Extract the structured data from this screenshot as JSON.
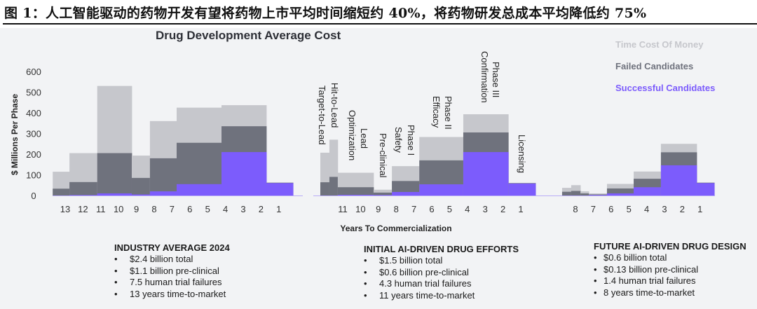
{
  "caption": "图 1：人工智能驱动的药物开发有望将药物上市平均时间缩短约 40%，将药物研发总成本平均降低约 75%",
  "chart_data": {
    "type": "bar",
    "title": "Drug Development Average Cost",
    "xlabel": "Years To Commercialization",
    "ylabel": "$ Millions Per Phase",
    "ylim": [
      0,
      600
    ],
    "yticks": [
      "0",
      "100",
      "200",
      "300",
      "400",
      "500",
      "600"
    ],
    "legend_position": "top-right",
    "legend": [
      {
        "label": "Time Cost Of Money",
        "color": "#c6c7cc"
      },
      {
        "label": "Failed Candidates",
        "color": "#6f727d"
      },
      {
        "label": "Successful Candidates",
        "color": "#7c5cfc"
      }
    ],
    "stack_note": "values are cumulative stack tops: total (incl. time cost), failed, successful",
    "panels": [
      {
        "name": "industry-average",
        "xticks": [
          "13",
          "12",
          "11",
          "10",
          "9",
          "8",
          "7",
          "6",
          "5",
          "4",
          "3",
          "2",
          "1"
        ],
        "segments": [
          {
            "from": 13.7,
            "to": 12.76,
            "total": 115,
            "failed": 33,
            "successful": 0
          },
          {
            "from": 12.76,
            "to": 11.2,
            "total": 205,
            "failed": 65,
            "successful": 2
          },
          {
            "from": 11.2,
            "to": 9.26,
            "total": 530,
            "failed": 205,
            "successful": 10
          },
          {
            "from": 9.26,
            "to": 8.24,
            "total": 193,
            "failed": 85,
            "successful": 5
          },
          {
            "from": 8.24,
            "to": 6.74,
            "total": 360,
            "failed": 180,
            "successful": 20
          },
          {
            "from": 6.74,
            "to": 4.22,
            "total": 425,
            "failed": 255,
            "successful": 55
          },
          {
            "from": 4.22,
            "to": 1.7,
            "total": 437,
            "failed": 335,
            "successful": 210
          },
          {
            "from": 1.7,
            "to": 0.2,
            "total": 62,
            "failed": 62,
            "successful": 60
          }
        ]
      },
      {
        "name": "initial-ai-driven",
        "xticks": [
          "11",
          "10",
          "9",
          "8",
          "7",
          "6",
          "5",
          "4",
          "3",
          "2",
          "1"
        ],
        "segments": [
          {
            "from": 12.26,
            "to": 11.75,
            "total": 207,
            "failed": 64,
            "successful": 0
          },
          {
            "from": 11.75,
            "to": 11.28,
            "total": 270,
            "failed": 90,
            "successful": 0
          },
          {
            "from": 11.28,
            "to": 9.27,
            "total": 110,
            "failed": 40,
            "successful": 3
          },
          {
            "from": 9.27,
            "to": 8.24,
            "total": 28,
            "failed": 14,
            "successful": 2
          },
          {
            "from": 8.24,
            "to": 6.7,
            "total": 142,
            "failed": 70,
            "successful": 17
          },
          {
            "from": 6.7,
            "to": 4.23,
            "total": 283,
            "failed": 170,
            "successful": 54
          },
          {
            "from": 4.23,
            "to": 1.7,
            "total": 393,
            "failed": 305,
            "successful": 210
          },
          {
            "from": 1.7,
            "to": 0.17,
            "total": 60,
            "failed": 60,
            "successful": 58
          }
        ],
        "phase_labels": [
          {
            "lines": [
              "Target-to-Lead"
            ]
          },
          {
            "lines": [
              "Hit-to-Lead"
            ]
          },
          {
            "lines": [
              "Lead",
              "Optimization"
            ]
          },
          {
            "lines": [
              "Pre-clinical"
            ]
          },
          {
            "lines": [
              "Phase I",
              "Safety"
            ]
          },
          {
            "lines": [
              "Phase II",
              "Efficacy"
            ]
          },
          {
            "lines": [
              "Phase III",
              "Confirmation"
            ]
          },
          {
            "lines": [
              "Licensing"
            ]
          }
        ]
      },
      {
        "name": "future-ai-driven",
        "xticks": [
          "8",
          "7",
          "6",
          "5",
          "4",
          "3",
          "2",
          "1"
        ],
        "segments": [
          {
            "from": 8.75,
            "to": 8.24,
            "total": 37,
            "failed": 18,
            "successful": 0
          },
          {
            "from": 8.24,
            "to": 7.72,
            "total": 50,
            "failed": 22,
            "successful": 0
          },
          {
            "from": 7.72,
            "to": 7.25,
            "total": 20,
            "failed": 10,
            "successful": 0
          },
          {
            "from": 7.25,
            "to": 6.23,
            "total": 10,
            "failed": 5,
            "successful": 2
          },
          {
            "from": 6.23,
            "to": 4.73,
            "total": 56,
            "failed": 34,
            "successful": 10
          },
          {
            "from": 4.73,
            "to": 3.2,
            "total": 116,
            "failed": 81,
            "successful": 40
          },
          {
            "from": 3.2,
            "to": 1.19,
            "total": 250,
            "failed": 209,
            "successful": 146
          },
          {
            "from": 1.19,
            "to": 0.2,
            "total": 62,
            "failed": 62,
            "successful": 60
          }
        ]
      }
    ]
  },
  "summaries": [
    {
      "title": "INDUSTRY AVERAGE 2024",
      "items": [
        "$2.4 billion total",
        "$1.1 billion pre-clinical",
        "7.5 human trial failures",
        "13 years time-to-market"
      ]
    },
    {
      "title": "INITIAL AI-DRIVEN DRUG EFFORTS",
      "items": [
        "$1.5 billion total",
        "$0.6 billion pre-clinical",
        "4.3 human trial failures",
        "11 years time-to-market"
      ]
    },
    {
      "title": "FUTURE AI-DRIVEN DRUG DESIGN",
      "items": [
        "$0.6 billion total",
        "$0.13 billion pre-clinical",
        "1.4 human trial failures",
        "8 years time-to-market"
      ]
    }
  ],
  "bullet": "•"
}
